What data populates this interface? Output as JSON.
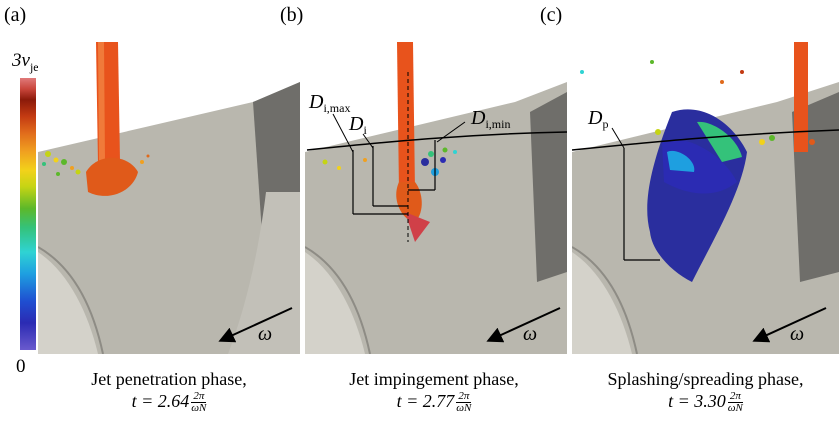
{
  "panels": [
    {
      "letter": "(a)",
      "caption_line1": "Jet penetration phase,",
      "caption_time": "t = 2.64"
    },
    {
      "letter": "(b)",
      "caption_line1": "Jet impingement phase,",
      "caption_time": "t = 2.77"
    },
    {
      "letter": "(c)",
      "caption_line1": "Splashing/spreading phase,",
      "caption_time": "t = 3.30"
    }
  ],
  "fraction": {
    "numerator": "2π",
    "denominator": "ωN"
  },
  "colorbar": {
    "max_label": "3v",
    "max_sub": "jet",
    "min_label": "0"
  },
  "annotations": {
    "omega": "ω",
    "d_i_max": "D",
    "d_i_max_sub": "i,max",
    "d_i": "D",
    "d_i_sub": "i",
    "d_i_min": "D",
    "d_i_min_sub": "i,min",
    "d_p": "D",
    "d_p_sub": "p"
  },
  "colors": {
    "jet": "#e8531c",
    "blade": "#b8b6ad",
    "blade_dark": "#6f6e6a",
    "fluid_blue": "#2a2e9e"
  }
}
